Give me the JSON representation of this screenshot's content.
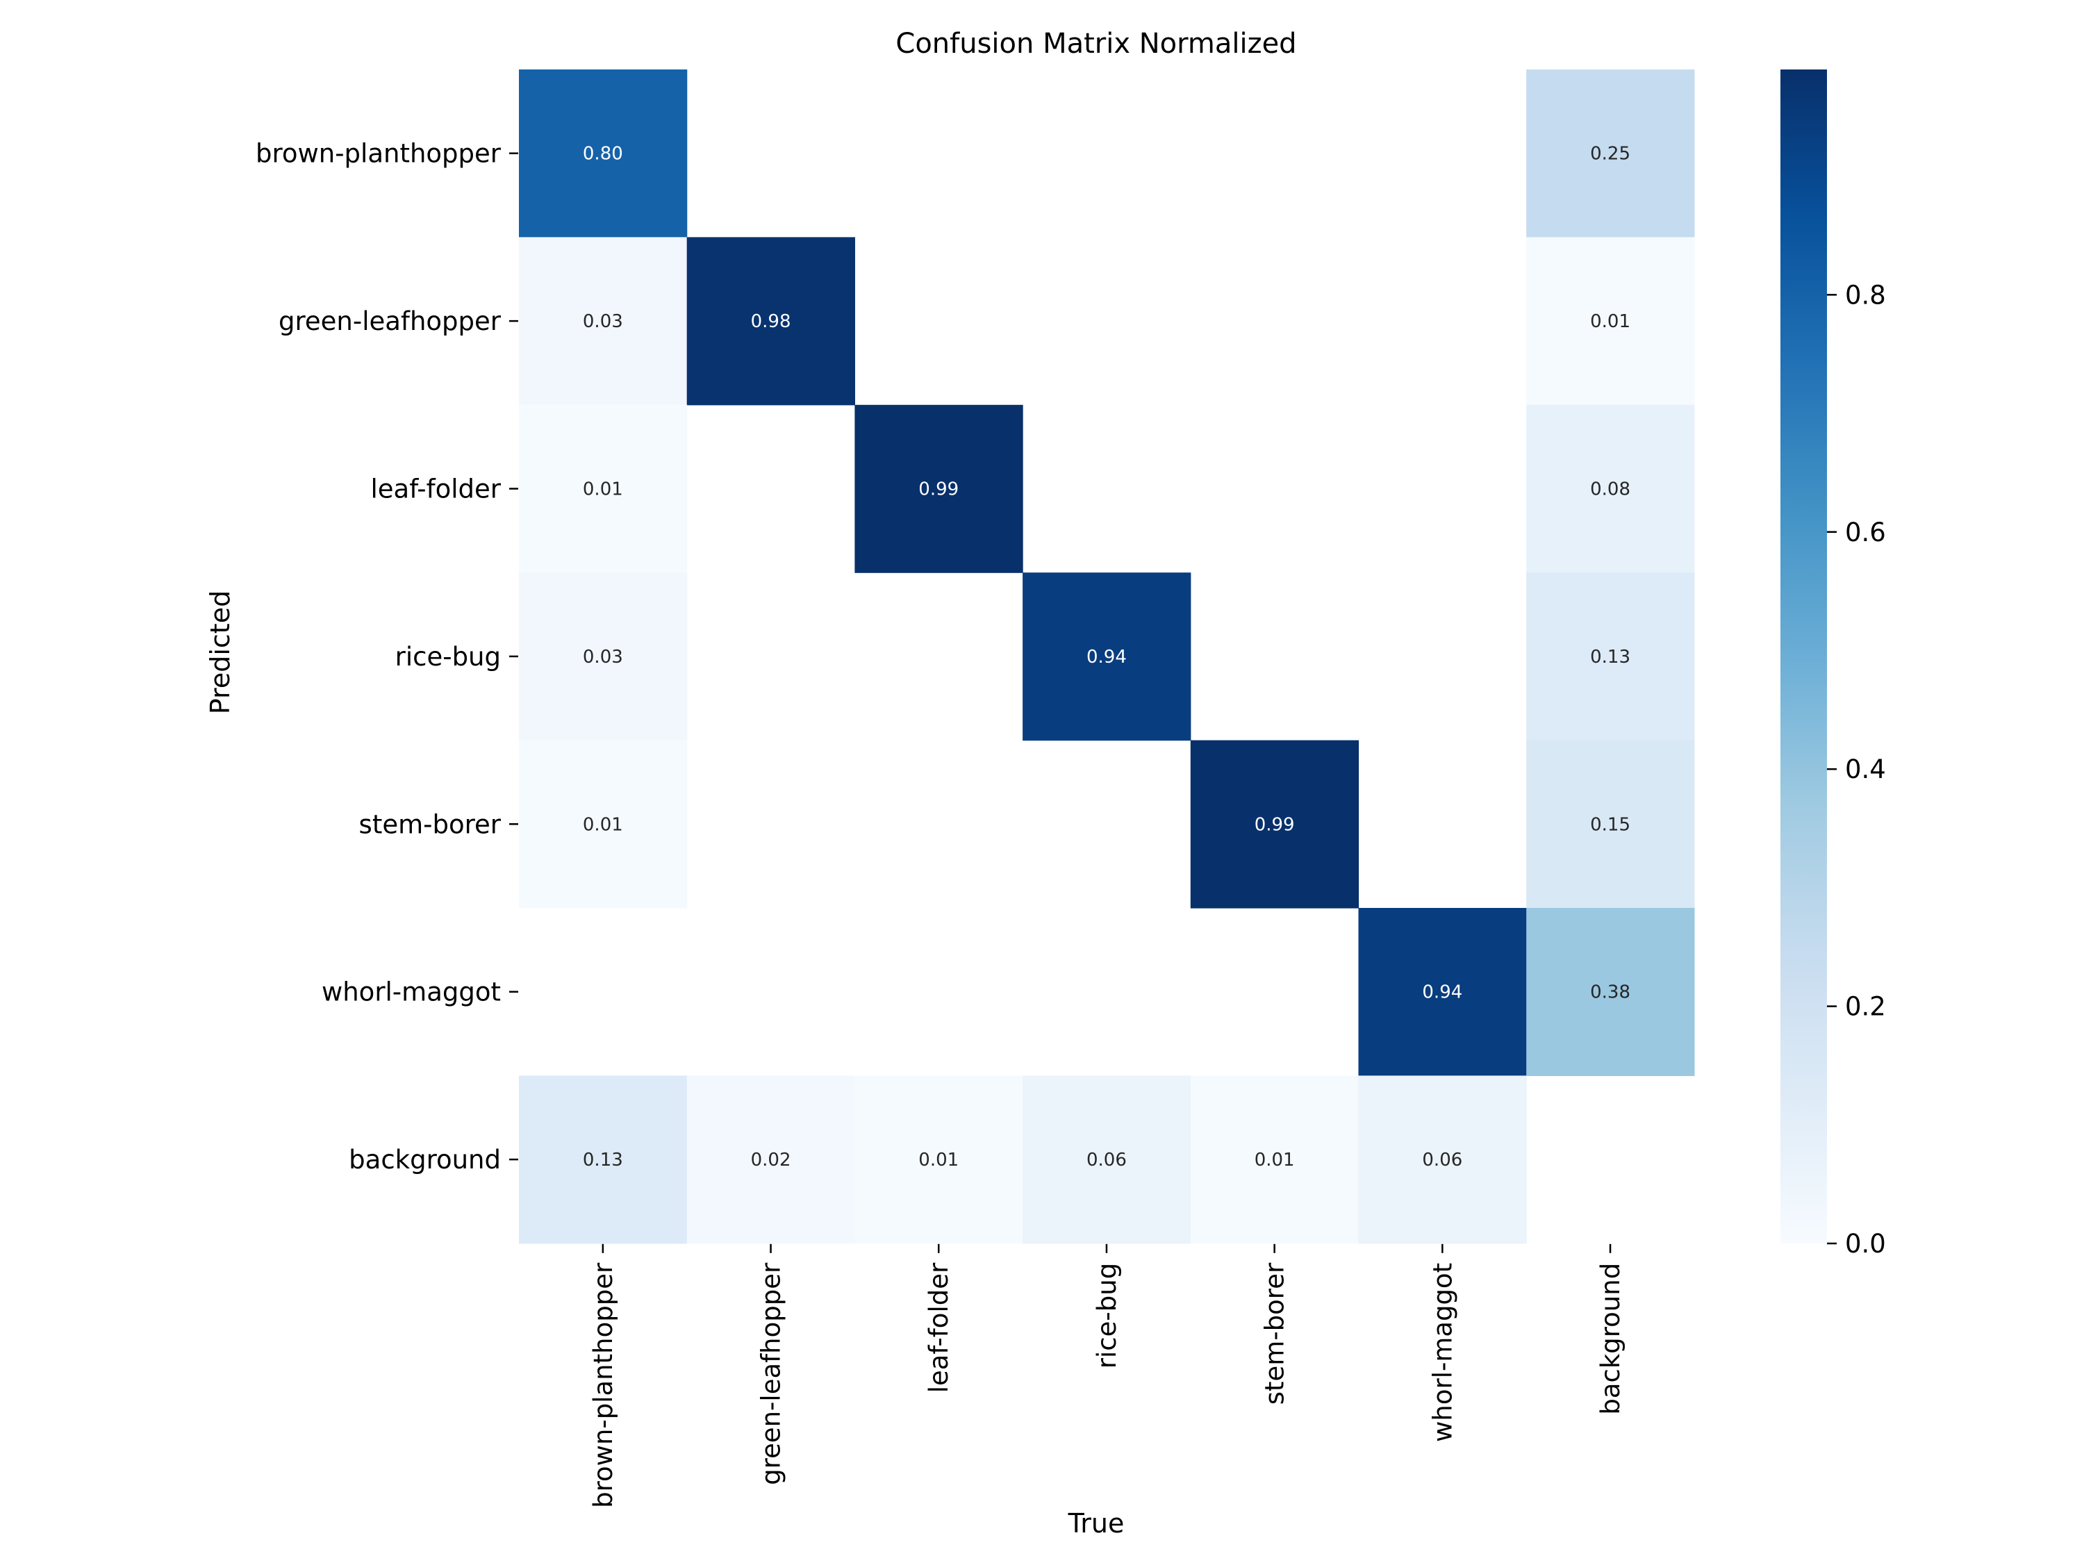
{
  "chart_data": {
    "type": "heatmap",
    "title": "Confusion Matrix Normalized",
    "xlabel": "True",
    "ylabel": "Predicted",
    "x_categories": [
      "brown-planthopper",
      "green-leafhopper",
      "leaf-folder",
      "rice-bug",
      "stem-borer",
      "whorl-maggot",
      "background"
    ],
    "y_categories": [
      "brown-planthopper",
      "green-leafhopper",
      "leaf-folder",
      "rice-bug",
      "stem-borer",
      "whorl-maggot",
      "background"
    ],
    "values": [
      [
        0.8,
        null,
        null,
        null,
        null,
        null,
        0.25
      ],
      [
        0.03,
        0.98,
        null,
        null,
        null,
        null,
        0.01
      ],
      [
        0.01,
        null,
        0.99,
        null,
        null,
        null,
        0.08
      ],
      [
        0.03,
        null,
        null,
        0.94,
        null,
        null,
        0.13
      ],
      [
        0.01,
        null,
        null,
        null,
        0.99,
        null,
        0.15
      ],
      [
        null,
        null,
        null,
        null,
        null,
        0.94,
        0.38
      ],
      [
        0.13,
        0.02,
        0.01,
        0.06,
        0.01,
        0.06,
        null
      ]
    ],
    "colorbar": {
      "range": [
        0,
        0.99
      ],
      "ticks": [
        "0.0",
        "0.2",
        "0.4",
        "0.6",
        "0.8"
      ],
      "colormap": "Blues"
    },
    "grid": false
  }
}
